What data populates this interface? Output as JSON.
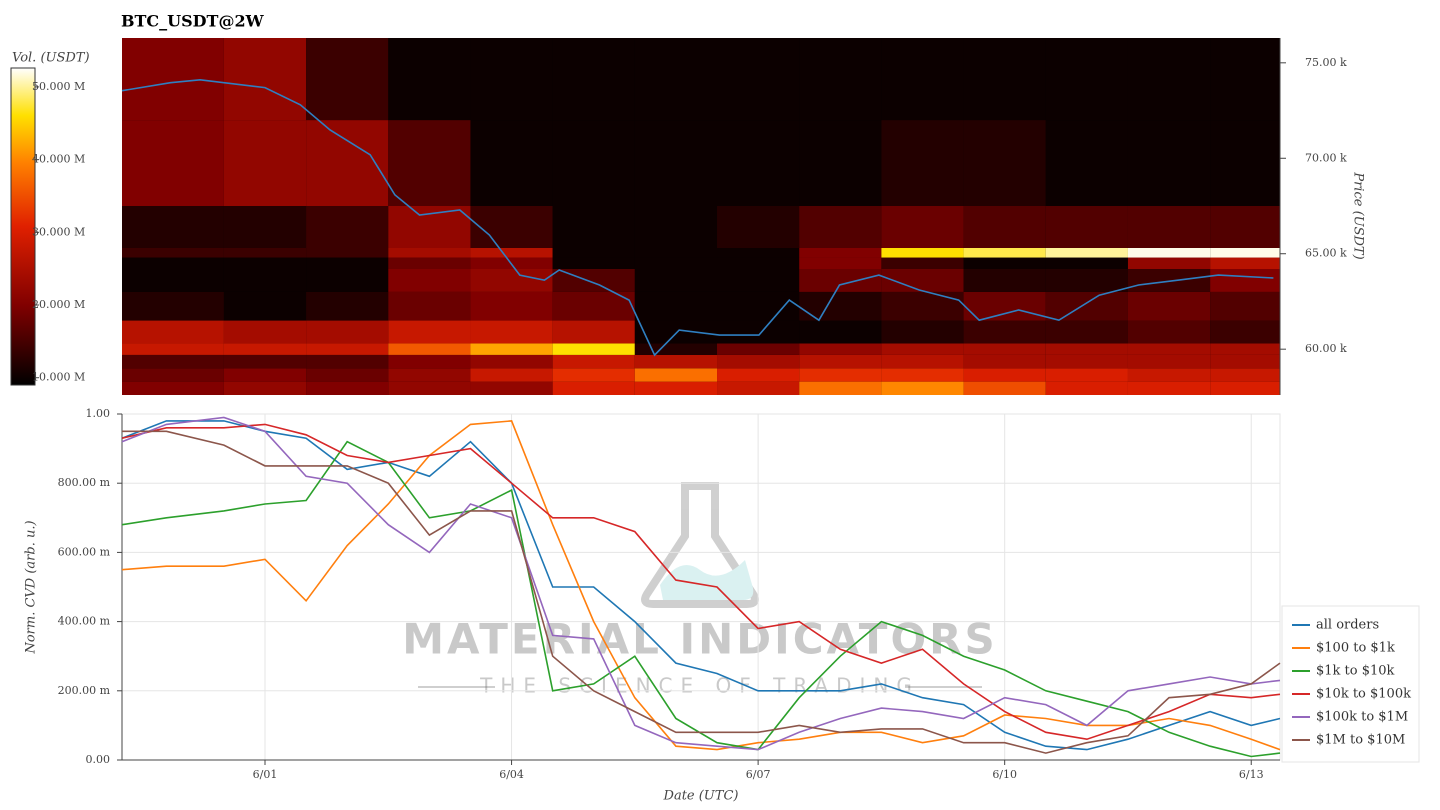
{
  "chart_data": [
    {
      "type": "heatmap",
      "title": "BTC_USDT@2W",
      "y_label": "Price (USDT)",
      "xlim": [
        -0.74,
        13.35
      ],
      "ylim": [
        57600,
        76300
      ],
      "yticks": [
        {
          "value": 60000,
          "label": "60.00 k"
        },
        {
          "value": 65000,
          "label": "65.00 k"
        },
        {
          "value": 70000,
          "label": "70.00 k"
        },
        {
          "value": 75000,
          "label": "75.00 k"
        }
      ],
      "x_bins": [
        -0.74,
        0.5,
        1.5,
        2.5,
        3.5,
        4.5,
        5.5,
        6.5,
        7.5,
        8.5,
        9.5,
        10.5,
        11.5,
        12.5,
        13.35
      ],
      "y_bins": [
        57600,
        58300,
        59000,
        59700,
        60300,
        61500,
        63000,
        64200,
        64800,
        65300,
        67500,
        72000,
        76300
      ],
      "z": [
        [
          20000000.0,
          22000000.0,
          20000000.0,
          22000000.0,
          22000000.0,
          30000000.0,
          30000000.0,
          28000000.0,
          38000000.0,
          40000000.0,
          35000000.0,
          30000000.0,
          30000000.0,
          30000000.0
        ],
        [
          18000000.0,
          20000000.0,
          18000000.0,
          22000000.0,
          28000000.0,
          32000000.0,
          38000000.0,
          30000000.0,
          32000000.0,
          32000000.0,
          30000000.0,
          30000000.0,
          28000000.0,
          28000000.0
        ],
        [
          16000000.0,
          16000000.0,
          16000000.0,
          20000000.0,
          22000000.0,
          28000000.0,
          26000000.0,
          24000000.0,
          26000000.0,
          26000000.0,
          24000000.0,
          24000000.0,
          24000000.0,
          24000000.0
        ],
        [
          28000000.0,
          28000000.0,
          28000000.0,
          36000000.0,
          42000000.0,
          46000000.0,
          12000000.0,
          18000000.0,
          22000000.0,
          24000000.0,
          24000000.0,
          24000000.0,
          24000000.0,
          24000000.0
        ],
        [
          26000000.0,
          24000000.0,
          24000000.0,
          28000000.0,
          28000000.0,
          26000000.0,
          10000000.0,
          10000000.0,
          10000000.0,
          12000000.0,
          14000000.0,
          14000000.0,
          16000000.0,
          14000000.0
        ],
        [
          12000000.0,
          10000000.0,
          12000000.0,
          18000000.0,
          20000000.0,
          18000000.0,
          10000000.0,
          10000000.0,
          12000000.0,
          14000000.0,
          18000000.0,
          16000000.0,
          18000000.0,
          16000000.0
        ],
        [
          10000000.0,
          10000000.0,
          10000000.0,
          20000000.0,
          22000000.0,
          16000000.0,
          10000000.0,
          10000000.0,
          18000000.0,
          18000000.0,
          12000000.0,
          12000000.0,
          14000000.0,
          20000000.0
        ],
        [
          10000000.0,
          10000000.0,
          10000000.0,
          18000000.0,
          20000000.0,
          10000000.0,
          10000000.0,
          10000000.0,
          20000000.0,
          14000000.0,
          10000000.0,
          10000000.0,
          22000000.0,
          26000000.0
        ],
        [
          14000000.0,
          14000000.0,
          14000000.0,
          24000000.0,
          26000000.0,
          10000000.0,
          10000000.0,
          10000000.0,
          20000000.0,
          46000000.0,
          48000000.0,
          50000000.0,
          52000000.0,
          52000000.0
        ],
        [
          12000000.0,
          12000000.0,
          14000000.0,
          22000000.0,
          14000000.0,
          10000000.0,
          10000000.0,
          12000000.0,
          16000000.0,
          18000000.0,
          16000000.0,
          16000000.0,
          16000000.0,
          16000000.0
        ],
        [
          20000000.0,
          22000000.0,
          22000000.0,
          16000000.0,
          10000000.0,
          10000000.0,
          10000000.0,
          10000000.0,
          10000000.0,
          12000000.0,
          12000000.0,
          10000000.0,
          10000000.0,
          10000000.0
        ],
        [
          20000000.0,
          22000000.0,
          14000000.0,
          10000000.0,
          10000000.0,
          10000000.0,
          10000000.0,
          10000000.0,
          10000000.0,
          10000000.0,
          10000000.0,
          10000000.0,
          10000000.0,
          10000000.0
        ]
      ],
      "colorbar": {
        "label": "Vol. (USDT)",
        "clim": [
          9000000,
          52600000
        ],
        "ticks": [
          {
            "value": 10000000,
            "label": "10.000 M"
          },
          {
            "value": 20000000,
            "label": "20.000 M"
          },
          {
            "value": 30000000,
            "label": "30.000 M"
          },
          {
            "value": 40000000,
            "label": "40.000 M"
          },
          {
            "value": 50000000,
            "label": "50.000 M"
          }
        ]
      },
      "line": {
        "color": "#2f7fc1",
        "x": [
          -0.74,
          -0.15,
          0.21,
          1.0,
          1.43,
          1.79,
          2.28,
          2.58,
          2.88,
          3.37,
          3.73,
          4.1,
          4.4,
          4.58,
          5.07,
          5.43,
          5.74,
          6.04,
          6.53,
          7.01,
          7.38,
          7.74,
          7.99,
          8.47,
          8.96,
          9.44,
          9.69,
          10.17,
          10.66,
          11.15,
          11.63,
          12.12,
          12.6,
          13.27
        ],
        "values": [
          73540,
          73960,
          74110,
          73700,
          72800,
          71490,
          70180,
          68080,
          67030,
          67290,
          65980,
          63880,
          63620,
          64150,
          63360,
          62570,
          59690,
          61000,
          60740,
          60740,
          62570,
          61520,
          63360,
          63880,
          63100,
          62570,
          61520,
          62050,
          61520,
          62830,
          63360,
          63620,
          63880,
          63730
        ]
      }
    },
    {
      "type": "line",
      "x_label": "Date (UTC)",
      "y_label": "Norm. CVD (arb. u.)",
      "watermark": [
        "MATERIAL INDICATORS",
        "THE SCIENCE OF TRADING"
      ],
      "xlim": [
        -0.74,
        13.35
      ],
      "ylim": [
        0,
        1
      ],
      "xticks": [
        {
          "value": 1,
          "label": "6/01"
        },
        {
          "value": 4,
          "label": "6/04"
        },
        {
          "value": 7,
          "label": "6/07"
        },
        {
          "value": 10,
          "label": "6/10"
        },
        {
          "value": 13,
          "label": "6/13"
        }
      ],
      "yticks": [
        {
          "value": 0,
          "label": "0.00"
        },
        {
          "value": 0.2,
          "label": "200.00 m"
        },
        {
          "value": 0.4,
          "label": "400.00 m"
        },
        {
          "value": 0.6,
          "label": "600.00 m"
        },
        {
          "value": 0.8,
          "label": "800.00 m"
        },
        {
          "value": 1,
          "label": "1.00"
        }
      ],
      "grid": true,
      "legend": "lower-right",
      "x": [
        -0.74,
        -0.2,
        0.5,
        1.0,
        1.5,
        2.0,
        2.5,
        3.0,
        3.5,
        4.0,
        4.5,
        5.0,
        5.5,
        6.0,
        6.5,
        7.0,
        7.5,
        8.0,
        8.5,
        9.0,
        9.5,
        10.0,
        10.5,
        11.0,
        11.5,
        12.0,
        12.5,
        13.0,
        13.35
      ],
      "series": [
        {
          "name": "all orders",
          "color": "#1f77b4",
          "values": [
            0.93,
            0.98,
            0.98,
            0.95,
            0.93,
            0.84,
            0.86,
            0.82,
            0.92,
            0.8,
            0.5,
            0.5,
            0.4,
            0.28,
            0.25,
            0.2,
            0.2,
            0.2,
            0.22,
            0.18,
            0.16,
            0.08,
            0.04,
            0.03,
            0.06,
            0.1,
            0.14,
            0.1,
            0.12
          ]
        },
        {
          "name": "$100 to $1k",
          "color": "#ff7f0e",
          "values": [
            0.55,
            0.56,
            0.56,
            0.58,
            0.46,
            0.62,
            0.74,
            0.88,
            0.97,
            0.98,
            0.68,
            0.4,
            0.18,
            0.04,
            0.03,
            0.05,
            0.06,
            0.08,
            0.08,
            0.05,
            0.07,
            0.13,
            0.12,
            0.1,
            0.1,
            0.12,
            0.1,
            0.06,
            0.03
          ]
        },
        {
          "name": "$1k to $10k",
          "color": "#2ca02c",
          "values": [
            0.68,
            0.7,
            0.72,
            0.74,
            0.75,
            0.92,
            0.86,
            0.7,
            0.72,
            0.78,
            0.2,
            0.22,
            0.3,
            0.12,
            0.05,
            0.03,
            0.18,
            0.3,
            0.4,
            0.36,
            0.3,
            0.26,
            0.2,
            0.17,
            0.14,
            0.08,
            0.04,
            0.01,
            0.02
          ]
        },
        {
          "name": "$10k to $100k",
          "color": "#d62728",
          "values": [
            0.93,
            0.96,
            0.96,
            0.97,
            0.94,
            0.88,
            0.86,
            0.88,
            0.9,
            0.8,
            0.7,
            0.7,
            0.66,
            0.52,
            0.5,
            0.38,
            0.4,
            0.32,
            0.28,
            0.32,
            0.22,
            0.14,
            0.08,
            0.06,
            0.1,
            0.14,
            0.19,
            0.18,
            0.19
          ]
        },
        {
          "name": "$100k to $1M",
          "color": "#9467bd",
          "values": [
            0.92,
            0.97,
            0.99,
            0.95,
            0.82,
            0.8,
            0.68,
            0.6,
            0.74,
            0.7,
            0.36,
            0.35,
            0.1,
            0.05,
            0.04,
            0.03,
            0.08,
            0.12,
            0.15,
            0.14,
            0.12,
            0.18,
            0.16,
            0.1,
            0.2,
            0.22,
            0.24,
            0.22,
            0.23
          ]
        },
        {
          "name": "$1M to $10M",
          "color": "#8c564b",
          "values": [
            0.95,
            0.95,
            0.91,
            0.85,
            0.85,
            0.85,
            0.8,
            0.65,
            0.72,
            0.72,
            0.3,
            0.2,
            0.14,
            0.08,
            0.08,
            0.08,
            0.1,
            0.08,
            0.09,
            0.09,
            0.05,
            0.05,
            0.02,
            0.05,
            0.07,
            0.18,
            0.19,
            0.22,
            0.28
          ]
        }
      ]
    }
  ]
}
